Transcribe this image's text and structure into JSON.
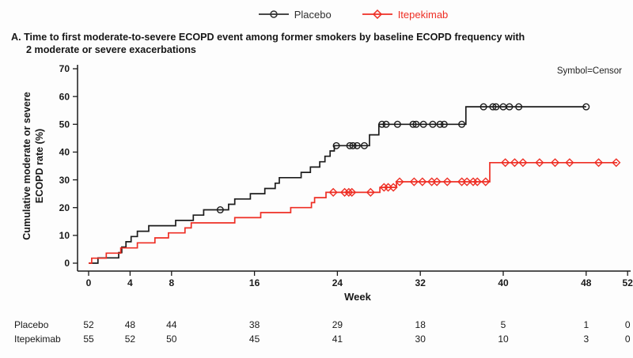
{
  "legend": {
    "items": [
      {
        "label": "Placebo",
        "color": "#1c1c1c",
        "marker": "circle"
      },
      {
        "label": "Itepekimab",
        "color": "#ee2e24",
        "marker": "diamond"
      }
    ]
  },
  "title": {
    "line1": "A. Time to first moderate-to-severe ECOPD event among former smokers by baseline ECOPD frequency with",
    "line2": "2 moderate or severe exacerbations"
  },
  "chart_data": {
    "type": "line",
    "subtype": "kaplan-meier-step",
    "title": "A. Time to first moderate-to-severe ECOPD event among former smokers by baseline ECOPD frequency with 2 moderate or severe exacerbations",
    "xlabel": "Week",
    "ylabel": "Cumulative moderate or severe ECOPD rate (%)",
    "ylabel_lines": [
      "Cumulative moderate or severe",
      "ECOPD rate (%)"
    ],
    "annotation": "Symbol=Censor",
    "xlim": [
      0,
      52
    ],
    "ylim": [
      0,
      70
    ],
    "xticks": [
      0,
      4,
      8,
      16,
      24,
      32,
      40,
      48,
      52
    ],
    "yticks": [
      0,
      10,
      20,
      30,
      40,
      50,
      60,
      70
    ],
    "grid": false,
    "legend_position": "top-center",
    "series": [
      {
        "name": "Placebo",
        "color": "#1c1c1c",
        "marker": "circle",
        "steps": [
          [
            0,
            0
          ],
          [
            0.9,
            1.9
          ],
          [
            2.9,
            3.8
          ],
          [
            3.2,
            5.8
          ],
          [
            3.6,
            7.7
          ],
          [
            4.1,
            9.6
          ],
          [
            4.7,
            11.5
          ],
          [
            5.8,
            13.5
          ],
          [
            8.4,
            15.4
          ],
          [
            10.1,
            17.3
          ],
          [
            11.1,
            19.2
          ],
          [
            13.5,
            21.2
          ],
          [
            14.1,
            23.1
          ],
          [
            15.6,
            25.0
          ],
          [
            17.0,
            26.9
          ],
          [
            18.0,
            28.8
          ],
          [
            18.4,
            30.8
          ],
          [
            20.5,
            32.7
          ],
          [
            21.4,
            34.6
          ],
          [
            22.3,
            36.5
          ],
          [
            22.8,
            38.5
          ],
          [
            23.3,
            40.4
          ],
          [
            23.7,
            42.3
          ],
          [
            27.1,
            46.2
          ],
          [
            28.0,
            50.0
          ],
          [
            36.4,
            56.3
          ],
          [
            48.0,
            56.3
          ]
        ],
        "censors": [
          [
            12.7,
            19.2
          ],
          [
            23.9,
            42.3
          ],
          [
            25.2,
            42.3
          ],
          [
            25.5,
            42.3
          ],
          [
            25.9,
            42.3
          ],
          [
            26.6,
            42.3
          ],
          [
            28.3,
            50.0
          ],
          [
            28.7,
            50.0
          ],
          [
            29.8,
            50.0
          ],
          [
            31.3,
            50.0
          ],
          [
            31.6,
            50.0
          ],
          [
            32.3,
            50.0
          ],
          [
            33.2,
            50.0
          ],
          [
            33.9,
            50.0
          ],
          [
            34.3,
            50.0
          ],
          [
            36.0,
            50.0
          ],
          [
            38.1,
            56.3
          ],
          [
            39.0,
            56.3
          ],
          [
            39.3,
            56.3
          ],
          [
            40.0,
            56.3
          ],
          [
            40.6,
            56.3
          ],
          [
            41.5,
            56.3
          ],
          [
            48.0,
            56.3
          ]
        ]
      },
      {
        "name": "Itepekimab",
        "color": "#ee2e24",
        "marker": "diamond",
        "steps": [
          [
            0,
            0
          ],
          [
            0.3,
            1.8
          ],
          [
            1.7,
            3.6
          ],
          [
            3.1,
            5.5
          ],
          [
            4.7,
            7.3
          ],
          [
            6.4,
            9.1
          ],
          [
            7.7,
            10.9
          ],
          [
            9.3,
            12.7
          ],
          [
            9.9,
            14.5
          ],
          [
            14.1,
            16.4
          ],
          [
            16.6,
            18.2
          ],
          [
            19.5,
            20.0
          ],
          [
            21.5,
            21.8
          ],
          [
            21.8,
            23.6
          ],
          [
            22.9,
            25.5
          ],
          [
            28.1,
            27.3
          ],
          [
            29.7,
            29.3
          ],
          [
            38.7,
            36.2
          ],
          [
            51.0,
            36.2
          ]
        ],
        "censors": [
          [
            23.6,
            25.5
          ],
          [
            24.7,
            25.5
          ],
          [
            25.1,
            25.5
          ],
          [
            25.4,
            25.5
          ],
          [
            27.2,
            25.5
          ],
          [
            28.5,
            27.3
          ],
          [
            28.9,
            27.3
          ],
          [
            29.4,
            27.3
          ],
          [
            30.0,
            29.3
          ],
          [
            31.4,
            29.3
          ],
          [
            32.2,
            29.3
          ],
          [
            33.1,
            29.3
          ],
          [
            33.6,
            29.3
          ],
          [
            34.6,
            29.3
          ],
          [
            36.0,
            29.3
          ],
          [
            36.5,
            29.3
          ],
          [
            37.1,
            29.3
          ],
          [
            37.5,
            29.3
          ],
          [
            38.3,
            29.3
          ],
          [
            40.2,
            36.2
          ],
          [
            41.1,
            36.2
          ],
          [
            41.9,
            36.2
          ],
          [
            43.5,
            36.2
          ],
          [
            45.0,
            36.2
          ],
          [
            46.4,
            36.2
          ],
          [
            49.2,
            36.2
          ],
          [
            50.9,
            36.2
          ]
        ]
      }
    ],
    "risk_table": {
      "weeks": [
        0,
        4,
        8,
        16,
        24,
        32,
        40,
        48,
        52
      ],
      "rows": [
        {
          "label": "Placebo",
          "counts": [
            52,
            48,
            44,
            38,
            29,
            18,
            5,
            1,
            0
          ]
        },
        {
          "label": "Itepekimab",
          "counts": [
            55,
            52,
            50,
            45,
            41,
            30,
            10,
            3,
            0
          ]
        }
      ]
    }
  }
}
